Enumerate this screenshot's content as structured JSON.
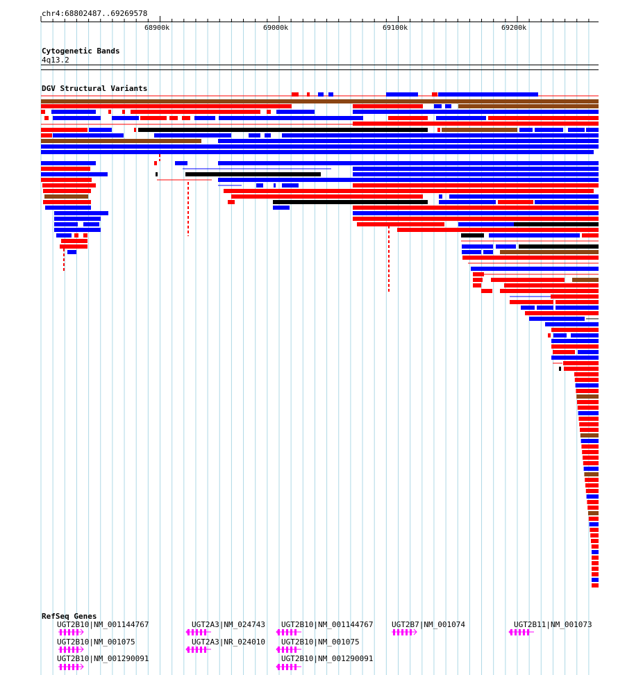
{
  "ruler": {
    "locus": "chr4:68802487..69269578",
    "ticks": [
      {
        "label": "68900k",
        "bp": 68900000
      },
      {
        "label": "69000k",
        "bp": 69000000
      },
      {
        "label": "69100k",
        "bp": 69100000
      },
      {
        "label": "69200k",
        "bp": 69200000
      }
    ]
  },
  "tracks": {
    "cytoband": {
      "title": "Cytogenetic Bands",
      "band": "4q13.2"
    },
    "dgv": {
      "title": "DGV Structural Variants"
    },
    "refseq": {
      "title": "RefSeq Genes"
    }
  },
  "colors": {
    "loss": "#ff0000",
    "gain": "#0000ff",
    "gain_loss": "#8b4513",
    "inversion": "#000000",
    "gene": "#ff00ff",
    "gridline": "#add8e6"
  },
  "genes": [
    {
      "label": "UGT2B10|NM_001144767",
      "strand": "+"
    },
    {
      "label": "UGT2B10|NM_001075",
      "strand": "+"
    },
    {
      "label": "UGT2B10|NM_001290091",
      "strand": "+"
    },
    {
      "label": "UGT2A3|NM_024743",
      "strand": "-"
    },
    {
      "label": "UGT2A3|NR_024010",
      "strand": "-"
    },
    {
      "label": "UGT2B10|NM_001144767",
      "strand": "-"
    },
    {
      "label": "UGT2B10|NM_001075",
      "strand": "-"
    },
    {
      "label": "UGT2B10|NM_001290091",
      "strand": "-"
    },
    {
      "label": "UGT2B7|NM_001074",
      "strand": "+"
    },
    {
      "label": "UGT2B11|NM_001073",
      "strand": "-"
    }
  ]
}
